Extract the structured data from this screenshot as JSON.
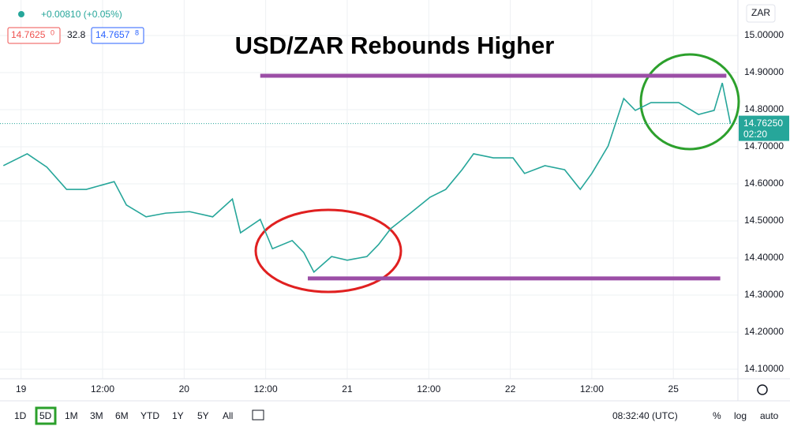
{
  "chart_data": {
    "type": "line",
    "title": "USD/ZAR Rebounds Higher",
    "x": [
      -2.6,
      0.9,
      3.8,
      6.7,
      9.6,
      13.7,
      15.5,
      18.4,
      21.3,
      24.8,
      28.2,
      31.1,
      32.3,
      35.2,
      37.0,
      39.9,
      41.6,
      43.1,
      45.7,
      48.0,
      50.9,
      52.6,
      54.4,
      57.3,
      60.2,
      62.5,
      64.9,
      66.6,
      69.5,
      72.4,
      74.1,
      77.1,
      80.0,
      82.3,
      84.0,
      86.4,
      88.7,
      90.4,
      92.7,
      96.8,
      99.7,
      102.0,
      103.2,
      104.4
    ],
    "series": [
      {
        "name": "USD/ZAR",
        "color": "#26a69a",
        "values": [
          14.649,
          14.681,
          14.645,
          14.585,
          14.585,
          14.606,
          14.543,
          14.511,
          14.521,
          14.525,
          14.511,
          14.559,
          14.468,
          14.504,
          14.425,
          14.447,
          14.415,
          14.362,
          14.404,
          14.394,
          14.404,
          14.436,
          14.479,
          14.521,
          14.564,
          14.585,
          14.638,
          14.681,
          14.67,
          14.67,
          14.628,
          14.649,
          14.638,
          14.585,
          14.628,
          14.702,
          14.83,
          14.798,
          14.819,
          14.819,
          14.787,
          14.798,
          14.872,
          14.7625
        ]
      }
    ],
    "levels": [
      {
        "value": 14.8915,
        "x": [
          35.2,
          103.8
        ],
        "color": "#9b4ea6"
      },
      {
        "value": 14.345,
        "x": [
          42.2,
          102.9
        ],
        "color": "#9b4ea6"
      }
    ],
    "last_price": {
      "value": 14.7625,
      "label": "14.76250",
      "countdown": "02:20",
      "color": "#26a69a"
    },
    "xlim": [
      -3.1,
      105.5
    ],
    "ylim": [
      14.0745,
      15.0957
    ],
    "xticks": [
      {
        "value": 0,
        "label": "19"
      },
      {
        "value": 12,
        "label": "12:00"
      },
      {
        "value": 24,
        "label": "20"
      },
      {
        "value": 36,
        "label": "12:00"
      },
      {
        "value": 48,
        "label": "21"
      },
      {
        "value": 60,
        "label": "12:00"
      },
      {
        "value": 72,
        "label": "22"
      },
      {
        "value": 84,
        "label": "12:00"
      },
      {
        "value": 96,
        "label": "25"
      }
    ],
    "yticks": [
      {
        "value": 14.1,
        "label": "14.10000"
      },
      {
        "value": 14.2,
        "label": "14.20000"
      },
      {
        "value": 14.3,
        "label": "14.30000"
      },
      {
        "value": 14.4,
        "label": "14.40000"
      },
      {
        "value": 14.5,
        "label": "14.50000"
      },
      {
        "value": 14.6,
        "label": "14.60000"
      },
      {
        "value": 14.7,
        "label": "14.70000"
      },
      {
        "value": 14.8,
        "label": "14.80000"
      },
      {
        "value": 14.9,
        "label": "14.90000"
      },
      {
        "value": 15,
        "label": "15.00000"
      }
    ],
    "grid": true
  },
  "ui": {
    "change": "+0.00810 (+0.05%)",
    "bid": "14.7625",
    "bid_small": "0",
    "spread": "32.8",
    "ask": "14.7657",
    "ask_small": "8",
    "currency": "ZAR",
    "ranges": [
      "1D",
      "5D",
      "1M",
      "3M",
      "6M",
      "YTD",
      "1Y",
      "5Y",
      "All"
    ],
    "clock": "08:32:40 (UTC)",
    "percent": "%",
    "log": "log",
    "auto": "auto"
  }
}
